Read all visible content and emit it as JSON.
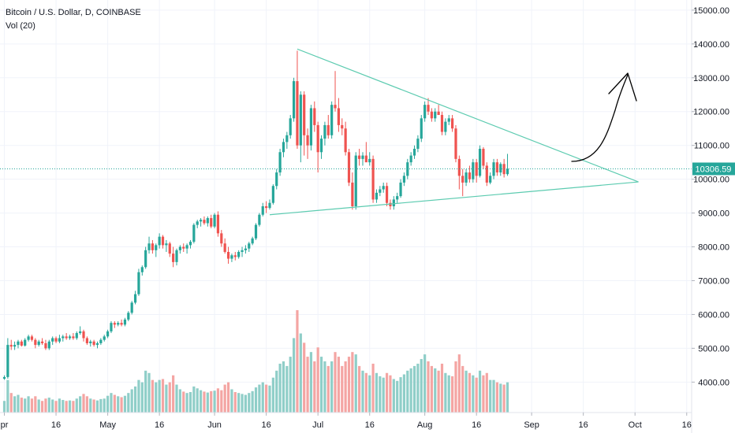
{
  "header": {
    "symbol_line": "Bitcoin / U.S. Dollar, D, COINBASE",
    "volume_line": "Vol (20)"
  },
  "last_price": {
    "value": 10306.59,
    "label": "10306.59"
  },
  "colors": {
    "up": "#26a69a",
    "down": "#ef5350",
    "up_volume": "#8fcec8",
    "down_volume": "#f4a5a3",
    "trendline": "#5ccbb0",
    "price_line": "#26a69a",
    "grid": "#f0f3fa",
    "arrow": "#000000"
  },
  "chart_data": {
    "type": "candlestick",
    "title": "Bitcoin / U.S. Dollar, D, COINBASE",
    "ylim": [
      3100,
      15300
    ],
    "y_ticks": [
      "4000.00",
      "5000.00",
      "6000.00",
      "7000.00",
      "8000.00",
      "9000.00",
      "10000.00",
      "11000.00",
      "12000.00",
      "13000.00",
      "14000.00",
      "15000.00"
    ],
    "x_ticks": [
      {
        "label": "pr",
        "day": 0
      },
      {
        "label": "16",
        "day": 15
      },
      {
        "label": "May",
        "day": 30
      },
      {
        "label": "16",
        "day": 45
      },
      {
        "label": "Jun",
        "day": 61
      },
      {
        "label": "16",
        "day": 76
      },
      {
        "label": "Jul",
        "day": 91
      },
      {
        "label": "16",
        "day": 106
      },
      {
        "label": "Aug",
        "day": 122
      },
      {
        "label": "16",
        "day": 137
      },
      {
        "label": "Sep",
        "day": 153
      },
      {
        "label": "16",
        "day": 168
      },
      {
        "label": "Oct",
        "day": 183
      },
      {
        "label": "16",
        "day": 198
      }
    ],
    "candles": [
      [
        4100,
        4200,
        4070,
        4150,
        250
      ],
      [
        4150,
        5300,
        4100,
        5100,
        700
      ],
      [
        5100,
        5250,
        4950,
        5050,
        420
      ],
      [
        5050,
        5200,
        4950,
        5100,
        350
      ],
      [
        5100,
        5250,
        5000,
        5200,
        380
      ],
      [
        5200,
        5250,
        5050,
        5080,
        320
      ],
      [
        5080,
        5300,
        5050,
        5250,
        300
      ],
      [
        5250,
        5400,
        5200,
        5350,
        350
      ],
      [
        5350,
        5400,
        5200,
        5250,
        300
      ],
      [
        5250,
        5300,
        5000,
        5100,
        350
      ],
      [
        5100,
        5250,
        5050,
        5200,
        280
      ],
      [
        5200,
        5300,
        5100,
        5150,
        250
      ],
      [
        5150,
        5250,
        4950,
        5000,
        300
      ],
      [
        5000,
        5250,
        4950,
        5200,
        320
      ],
      [
        5200,
        5350,
        5100,
        5300,
        280
      ],
      [
        5300,
        5350,
        5150,
        5200,
        250
      ],
      [
        5200,
        5400,
        5150,
        5300,
        300
      ],
      [
        5300,
        5400,
        5200,
        5350,
        270
      ],
      [
        5350,
        5450,
        5250,
        5300,
        250
      ],
      [
        5300,
        5400,
        5250,
        5350,
        260
      ],
      [
        5350,
        5450,
        5250,
        5300,
        250
      ],
      [
        5300,
        5500,
        5250,
        5450,
        300
      ],
      [
        5450,
        5650,
        5400,
        5500,
        350
      ],
      [
        5500,
        5550,
        5200,
        5300,
        400
      ],
      [
        5300,
        5350,
        5100,
        5150,
        350
      ],
      [
        5150,
        5250,
        5050,
        5200,
        300
      ],
      [
        5200,
        5250,
        5050,
        5100,
        280
      ],
      [
        5100,
        5200,
        5000,
        5150,
        260
      ],
      [
        5150,
        5300,
        5100,
        5250,
        290
      ],
      [
        5250,
        5400,
        5200,
        5350,
        300
      ],
      [
        5350,
        5550,
        5300,
        5500,
        360
      ],
      [
        5500,
        5800,
        5450,
        5750,
        420
      ],
      [
        5750,
        5800,
        5600,
        5700,
        380
      ],
      [
        5700,
        5800,
        5650,
        5750,
        350
      ],
      [
        5750,
        5850,
        5650,
        5700,
        330
      ],
      [
        5700,
        5900,
        5650,
        5850,
        360
      ],
      [
        5850,
        6100,
        5800,
        6050,
        420
      ],
      [
        6050,
        6400,
        6000,
        6350,
        500
      ],
      [
        6350,
        6700,
        6300,
        6600,
        560
      ],
      [
        6600,
        7350,
        6550,
        7250,
        700
      ],
      [
        7250,
        7450,
        7150,
        7400,
        650
      ],
      [
        7400,
        8000,
        7350,
        7900,
        900
      ],
      [
        7900,
        8300,
        7800,
        8100,
        850
      ],
      [
        8100,
        8200,
        7800,
        7900,
        700
      ],
      [
        7900,
        8100,
        7700,
        8050,
        650
      ],
      [
        8050,
        8400,
        7950,
        8300,
        700
      ],
      [
        8300,
        8350,
        7950,
        8050,
        720
      ],
      [
        8050,
        8200,
        7850,
        8100,
        600
      ],
      [
        8100,
        8150,
        7700,
        7800,
        650
      ],
      [
        7800,
        8000,
        7400,
        7550,
        800
      ],
      [
        7550,
        7950,
        7450,
        7900,
        600
      ],
      [
        7900,
        8050,
        7800,
        8000,
        500
      ],
      [
        8000,
        8100,
        7850,
        7950,
        450
      ],
      [
        7950,
        8100,
        7800,
        8050,
        420
      ],
      [
        8050,
        8200,
        7950,
        8150,
        440
      ],
      [
        8150,
        8700,
        8100,
        8650,
        560
      ],
      [
        8650,
        8800,
        8550,
        8750,
        520
      ],
      [
        8750,
        8850,
        8600,
        8800,
        480
      ],
      [
        8800,
        8900,
        8650,
        8700,
        450
      ],
      [
        8700,
        8900,
        8600,
        8850,
        430
      ],
      [
        8850,
        8950,
        8550,
        8600,
        460
      ],
      [
        8600,
        9000,
        8550,
        8950,
        470
      ],
      [
        8950,
        9050,
        8300,
        8400,
        520
      ],
      [
        8400,
        8500,
        8000,
        8100,
        480
      ],
      [
        8100,
        8250,
        7800,
        7850,
        600
      ],
      [
        7850,
        8000,
        7500,
        7650,
        650
      ],
      [
        7650,
        7800,
        7550,
        7750,
        500
      ],
      [
        7750,
        7850,
        7600,
        7700,
        440
      ],
      [
        7700,
        7900,
        7650,
        7850,
        420
      ],
      [
        7850,
        8000,
        7700,
        7900,
        400
      ],
      [
        7900,
        8050,
        7800,
        7950,
        380
      ],
      [
        7950,
        8150,
        7850,
        8100,
        420
      ],
      [
        8100,
        8300,
        8050,
        8250,
        460
      ],
      [
        8250,
        8700,
        8200,
        8650,
        540
      ],
      [
        8650,
        9000,
        8600,
        8950,
        600
      ],
      [
        8950,
        9300,
        8900,
        9200,
        650
      ],
      [
        9200,
        9350,
        9000,
        9150,
        600
      ],
      [
        9150,
        9400,
        9100,
        9300,
        580
      ],
      [
        9300,
        9850,
        9250,
        9800,
        750
      ],
      [
        9800,
        10300,
        9700,
        10200,
        900
      ],
      [
        10200,
        10900,
        10100,
        10800,
        1050
      ],
      [
        10800,
        11200,
        10650,
        11100,
        1100
      ],
      [
        11100,
        11400,
        10900,
        11300,
        1000
      ],
      [
        11300,
        11900,
        11200,
        11800,
        1200
      ],
      [
        11800,
        13000,
        11700,
        12900,
        1600
      ],
      [
        12900,
        13800,
        10900,
        11000,
        2200
      ],
      [
        11000,
        12600,
        10500,
        12500,
        1700
      ],
      [
        12500,
        12600,
        10700,
        11300,
        1500
      ],
      [
        11300,
        11500,
        10600,
        11000,
        1200
      ],
      [
        11000,
        12200,
        10850,
        12100,
        1300
      ],
      [
        12100,
        12300,
        11400,
        11600,
        1100
      ],
      [
        11600,
        11700,
        10200,
        10800,
        1400
      ],
      [
        10800,
        11300,
        10600,
        11200,
        1200
      ],
      [
        11200,
        11700,
        11000,
        11600,
        1100
      ],
      [
        11600,
        11900,
        11200,
        11300,
        1000
      ],
      [
        11300,
        12300,
        11200,
        12200,
        1100
      ],
      [
        12200,
        13200,
        12000,
        12100,
        1300
      ],
      [
        12100,
        12400,
        11400,
        11600,
        1200
      ],
      [
        11600,
        11800,
        11300,
        11500,
        1000
      ],
      [
        11500,
        11700,
        10700,
        10800,
        1100
      ],
      [
        10800,
        10900,
        9800,
        9900,
        1200
      ],
      [
        9900,
        10200,
        9100,
        9200,
        1300
      ],
      [
        9200,
        10800,
        9100,
        10700,
        1250
      ],
      [
        10700,
        10900,
        10400,
        10600,
        1000
      ],
      [
        10600,
        10800,
        10400,
        10700,
        900
      ],
      [
        10700,
        11100,
        10600,
        10500,
        850
      ],
      [
        10500,
        10800,
        10400,
        10600,
        800
      ],
      [
        10600,
        10700,
        9300,
        9400,
        1050
      ],
      [
        9400,
        9700,
        9300,
        9600,
        850
      ],
      [
        9600,
        9800,
        9500,
        9700,
        780
      ],
      [
        9700,
        9900,
        9600,
        9800,
        750
      ],
      [
        9800,
        9900,
        9200,
        9300,
        850
      ],
      [
        9300,
        9400,
        9100,
        9200,
        800
      ],
      [
        9200,
        9500,
        9100,
        9400,
        720
      ],
      [
        9400,
        9600,
        9300,
        9500,
        680
      ],
      [
        9500,
        10000,
        9450,
        9900,
        760
      ],
      [
        9900,
        10200,
        9800,
        10100,
        820
      ],
      [
        10100,
        10600,
        10000,
        10500,
        900
      ],
      [
        10500,
        10800,
        10400,
        10700,
        950
      ],
      [
        10700,
        11000,
        10600,
        10900,
        1000
      ],
      [
        10900,
        11300,
        10800,
        11200,
        1050
      ],
      [
        11200,
        11900,
        11100,
        11800,
        1150
      ],
      [
        11800,
        12300,
        11700,
        12200,
        1250
      ],
      [
        12200,
        12400,
        11900,
        12000,
        1100
      ],
      [
        12000,
        12100,
        11700,
        11800,
        1000
      ],
      [
        11800,
        12100,
        11700,
        12000,
        950
      ],
      [
        12000,
        12200,
        11900,
        11900,
        900
      ],
      [
        11900,
        12000,
        11300,
        11400,
        1050
      ],
      [
        11400,
        11800,
        11300,
        11700,
        850
      ],
      [
        11700,
        11900,
        11600,
        11800,
        800
      ],
      [
        11800,
        11900,
        11400,
        11500,
        780
      ],
      [
        11500,
        11600,
        10500,
        10600,
        1100
      ],
      [
        10600,
        10700,
        9700,
        10100,
        1250
      ],
      [
        10100,
        10300,
        9500,
        9900,
        1000
      ],
      [
        9900,
        10300,
        9800,
        10200,
        900
      ],
      [
        10200,
        10400,
        9900,
        10000,
        850
      ],
      [
        10000,
        10600,
        9900,
        10500,
        800
      ],
      [
        10500,
        10600,
        9900,
        10100,
        750
      ],
      [
        10100,
        11000,
        10050,
        10900,
        900
      ],
      [
        10900,
        10950,
        10300,
        10400,
        800
      ],
      [
        10400,
        10500,
        9800,
        9900,
        850
      ],
      [
        9900,
        10200,
        9850,
        10100,
        700
      ],
      [
        10100,
        10600,
        10000,
        10500,
        700
      ],
      [
        10500,
        10600,
        10100,
        10200,
        650
      ],
      [
        10200,
        10500,
        10100,
        10450,
        620
      ],
      [
        10450,
        10600,
        10050,
        10150,
        600
      ],
      [
        10150,
        10750,
        10100,
        10306.59,
        650
      ]
    ],
    "triangle": {
      "upper": {
        "from": {
          "day": 85,
          "price": 13850
        },
        "to": {
          "day": 184,
          "price": 9920
        }
      },
      "lower": {
        "from": {
          "day": 77,
          "price": 8950
        },
        "to": {
          "day": 184,
          "price": 9920
        }
      }
    },
    "last_price_line": 10306.59
  }
}
